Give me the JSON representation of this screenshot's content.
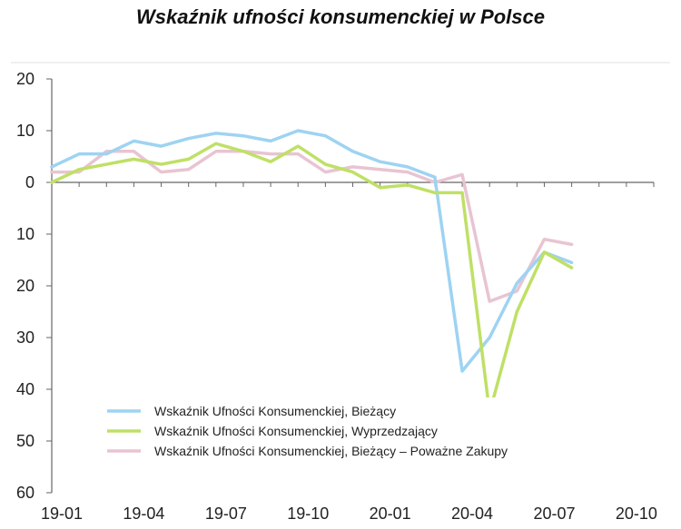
{
  "chart_data": {
    "type": "line",
    "title": "Wskaźnik ufności konsumenckiej w Polsce",
    "xlabel": "",
    "ylabel": "",
    "x": [
      "19-01",
      "19-02",
      "19-03",
      "19-04",
      "19-05",
      "19-06",
      "19-07",
      "19-08",
      "19-09",
      "19-10",
      "19-11",
      "19-12",
      "20-01",
      "20-02",
      "20-03",
      "20-04",
      "20-05",
      "20-06",
      "20-07",
      "20-08"
    ],
    "x_tick_labels": [
      "19-01",
      "19-04",
      "19-07",
      "19-10",
      "20-01",
      "20-04",
      "20-07",
      "20-10"
    ],
    "y_tick_labels": [
      "20",
      "10",
      "0",
      "10",
      "20",
      "30",
      "40",
      "50",
      "60"
    ],
    "y_tick_values": [
      20,
      10,
      0,
      -10,
      -20,
      -30,
      -40,
      -50,
      -60
    ],
    "ylim": [
      -60,
      20
    ],
    "x_slots": 22,
    "series": [
      {
        "name": "Wskaźnik Ufności Konsumenckiej, Bieżący",
        "color": "#9ed3f2",
        "values": [
          3.0,
          5.5,
          5.5,
          8.0,
          7.0,
          8.5,
          9.5,
          9.0,
          8.0,
          10.0,
          9.0,
          6.0,
          4.0,
          3.0,
          1.0,
          -36.5,
          -30.0,
          -19.5,
          -13.5,
          -15.5
        ]
      },
      {
        "name": "Wskaźnik Ufności Konsumenckiej, Wyprzedzający",
        "color": "#bfe066",
        "values": [
          0.0,
          2.5,
          3.5,
          4.5,
          3.5,
          4.5,
          7.5,
          6.0,
          4.0,
          7.0,
          3.5,
          2.0,
          -1.0,
          -0.5,
          -2.0,
          -2.0,
          -44.5,
          -25.0,
          -13.5,
          -16.5
        ]
      },
      {
        "name": "Wskaźnik Ufności Konsumenckiej, Bieżący – Poważne Zakupy",
        "color": "#e8c4d2",
        "values": [
          2.0,
          2.0,
          6.0,
          6.0,
          2.0,
          2.5,
          6.0,
          6.0,
          5.5,
          5.5,
          2.0,
          3.0,
          2.5,
          2.0,
          0.0,
          1.5,
          -23.0,
          -21.0,
          -11.0,
          -12.0
        ]
      }
    ],
    "legend_position": "bottom-left",
    "grid": false
  }
}
